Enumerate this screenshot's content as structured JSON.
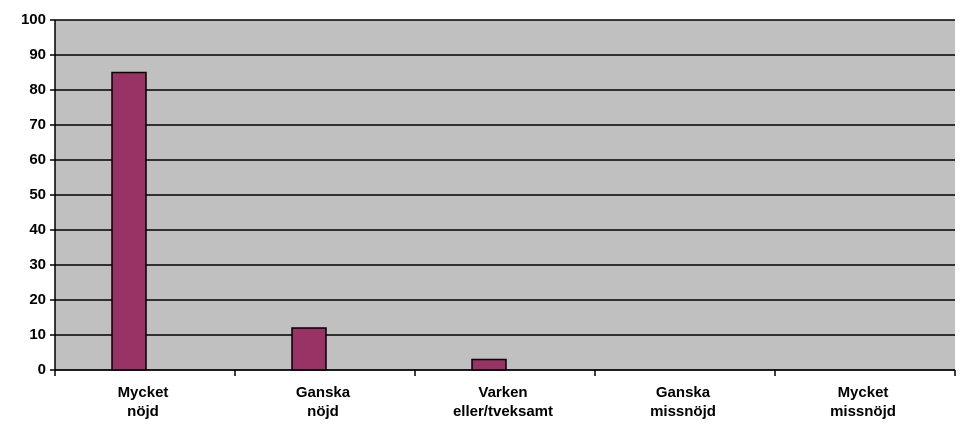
{
  "chart_data": {
    "type": "bar",
    "categories": [
      "Mycket nöjd",
      "Ganska nöjd",
      "Varken eller/tveksamt",
      "Ganska missnöjd",
      "Mycket missnöjd"
    ],
    "values": [
      85,
      12,
      3,
      0,
      0
    ],
    "color": "#993366",
    "ylim": [
      0,
      100
    ],
    "yticks": [
      0,
      10,
      20,
      30,
      40,
      50,
      60,
      70,
      80,
      90,
      100
    ],
    "grid": true
  }
}
